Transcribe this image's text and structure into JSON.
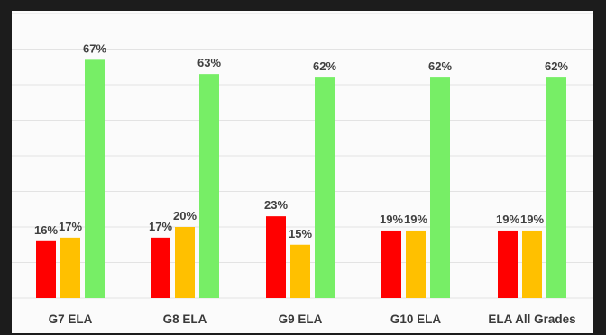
{
  "chart_data": {
    "type": "bar",
    "categories": [
      "G7 ELA",
      "G8 ELA",
      "G9 ELA",
      "G10 ELA",
      "ELA All Grades"
    ],
    "series": [
      {
        "values": [
          16,
          17,
          23,
          19,
          19
        ],
        "color": "#ff0000"
      },
      {
        "values": [
          17,
          20,
          15,
          19,
          19
        ],
        "color": "#ffc000"
      },
      {
        "values": [
          67,
          63,
          62,
          62,
          62
        ],
        "color": "#77ee66"
      }
    ],
    "value_labels": [
      [
        "16%",
        "17%",
        "23%",
        "19%",
        "19%"
      ],
      [
        "17%",
        "20%",
        "15%",
        "19%",
        "19%"
      ],
      [
        "67%",
        "63%",
        "62%",
        "62%",
        "62%"
      ]
    ],
    "ylim": [
      0,
      80
    ],
    "grid": true,
    "legend": false
  }
}
